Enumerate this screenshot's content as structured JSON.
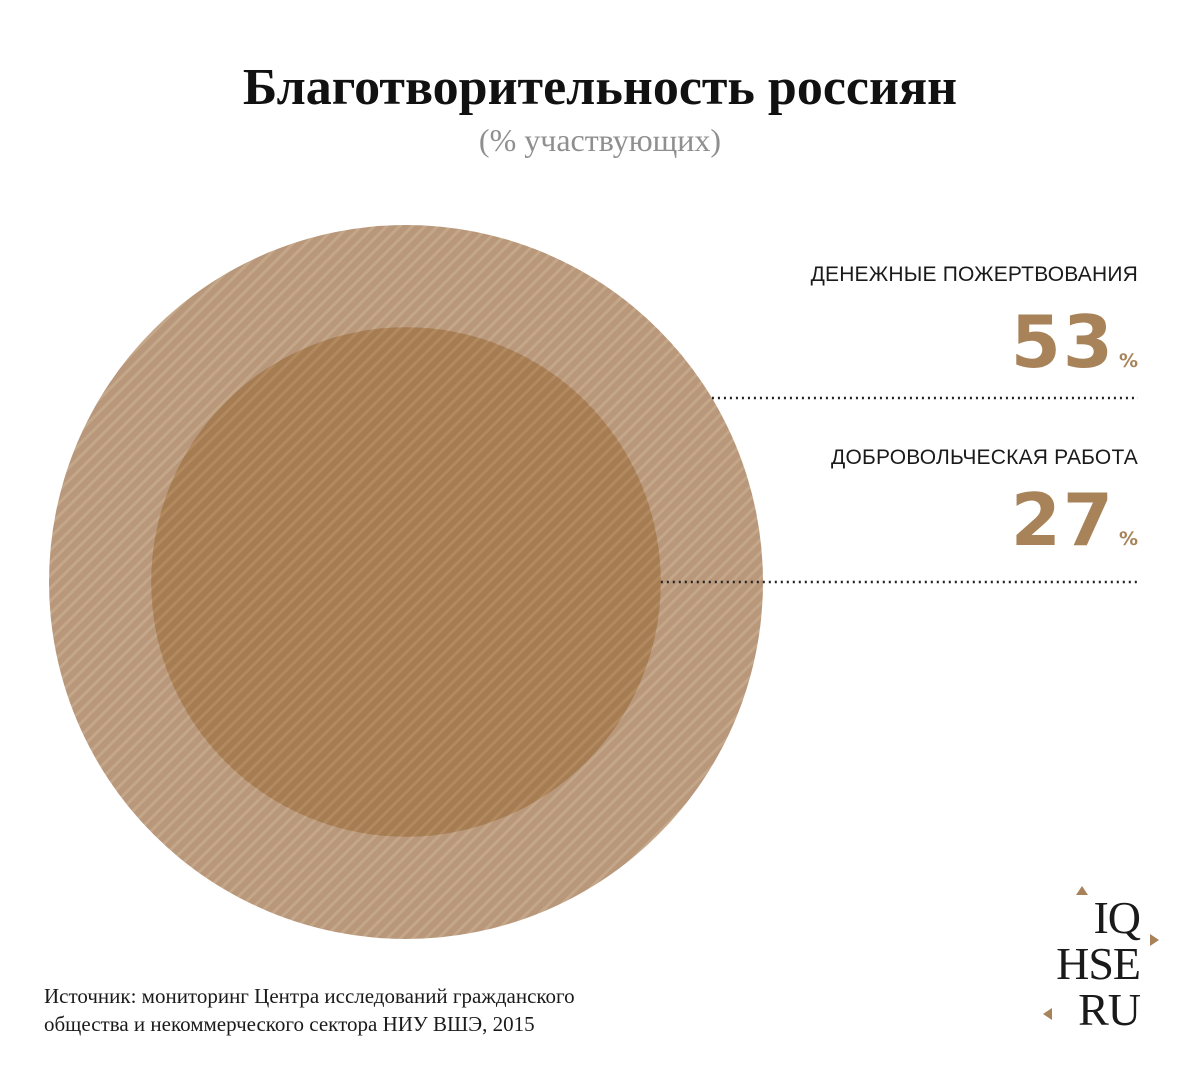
{
  "title": "Благотворительность россиян",
  "subtitle": "(% участвующих)",
  "chart_data": {
    "type": "area",
    "title": "Благотворительность россиян",
    "subtitle": "(% участвующих)",
    "categories": [
      "ДЕНЕЖНЫЕ ПОЖЕРТВОВАНИЯ",
      "ДОБРОВОЛЬЧЕСКАЯ РАБОТА"
    ],
    "values": [
      53,
      27
    ],
    "unit": "%",
    "colors": {
      "outer": "#b8977a",
      "outer_stripe": "#c4a689",
      "inner": "#a67c52",
      "inner_stripe": "#b38a60",
      "value_text": "#a8835a",
      "leader": "#222222"
    }
  },
  "labels": [
    {
      "name": "ДЕНЕЖНЫЕ ПОЖЕРТВОВАНИЯ",
      "value": "53",
      "unit": "%"
    },
    {
      "name": "ДОБРОВОЛЬЧЕСКАЯ РАБОТА",
      "value": "27",
      "unit": "%"
    }
  ],
  "source": {
    "line1": "Источник: мониторинг Центра исследований гражданского",
    "line2": "общества и некоммерческого сектора НИУ ВШЭ, 2015"
  },
  "logo": {
    "line1": "IQ",
    "line2": "HSE",
    "line3": "RU"
  }
}
